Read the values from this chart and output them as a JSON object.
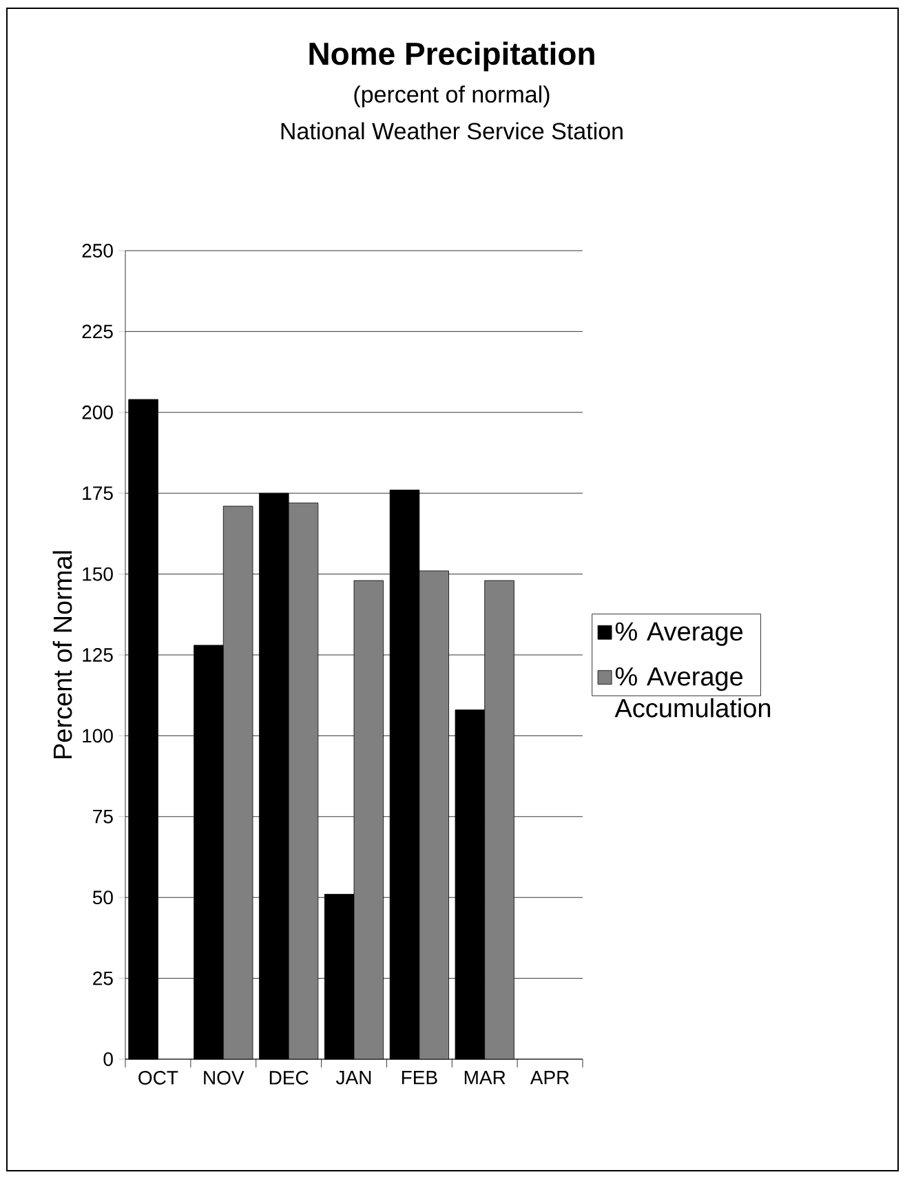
{
  "chart_data": {
    "type": "bar",
    "title": "Nome Precipitation",
    "subtitle": "(percent of normal)",
    "annotations": [
      "National Weather Service Station"
    ],
    "ylabel": "Percent of Normal",
    "categories": [
      "OCT",
      "NOV",
      "DEC",
      "JAN",
      "FEB",
      "MAR",
      "APR"
    ],
    "series": [
      {
        "name": "% Average",
        "color": "#000000",
        "values": [
          204,
          128,
          175,
          51,
          176,
          108,
          null
        ]
      },
      {
        "name": "% Average Accumulation",
        "color": "#808080",
        "values": [
          null,
          171,
          172,
          148,
          151,
          148,
          null
        ]
      }
    ],
    "ylim": [
      0,
      250
    ],
    "yticks": [
      0,
      25,
      50,
      75,
      100,
      125,
      150,
      175,
      200,
      225,
      250
    ],
    "grid": "y",
    "legend": "right"
  }
}
